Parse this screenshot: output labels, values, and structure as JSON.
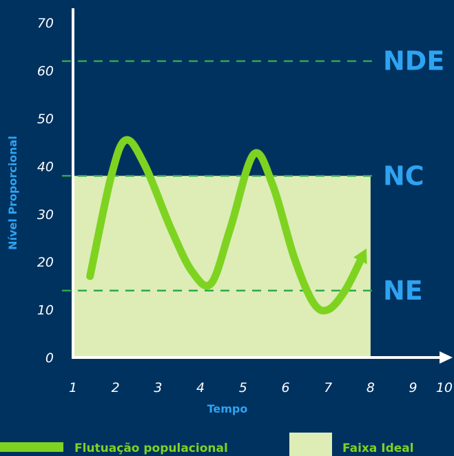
{
  "chart_data": {
    "type": "line",
    "title": "",
    "xlabel": "Tempo",
    "ylabel": "Nível Proporcional",
    "xlim": [
      1,
      10
    ],
    "ylim": [
      0,
      70
    ],
    "x_ticks": [
      "1",
      "2",
      "3",
      "4",
      "5",
      "6",
      "7",
      "8",
      "9",
      "10"
    ],
    "y_ticks": [
      "0",
      "10",
      "20",
      "30",
      "40",
      "50",
      "60",
      "70"
    ],
    "series": [
      {
        "name": "Flutuação populacional",
        "x": [
          1.4,
          1.9,
          2.25,
          2.7,
          3.3,
          3.8,
          4.25,
          4.7,
          5.25,
          5.7,
          6.2,
          6.65,
          7.0,
          7.4,
          7.8
        ],
        "y": [
          17,
          38,
          45.5,
          40,
          27,
          18,
          15.5,
          27,
          42.5,
          36,
          21,
          11.5,
          10,
          14,
          21
        ]
      }
    ],
    "band": {
      "name": "Faixa Ideal",
      "x_range": [
        1,
        8
      ],
      "y_range": [
        0,
        38
      ],
      "color": "#ddedb5"
    },
    "reference_lines": [
      {
        "label": "NDE",
        "y": 62
      },
      {
        "label": "NC",
        "y": 38
      },
      {
        "label": "NE",
        "y": 14
      }
    ],
    "grid": false,
    "legend_position": "bottom"
  },
  "colors": {
    "background": "#00325f",
    "line": "#7ed321",
    "band": "#ddedb5",
    "axis": "#ffffff",
    "reference": "#2ea84a",
    "label": "#2ea3f2"
  }
}
